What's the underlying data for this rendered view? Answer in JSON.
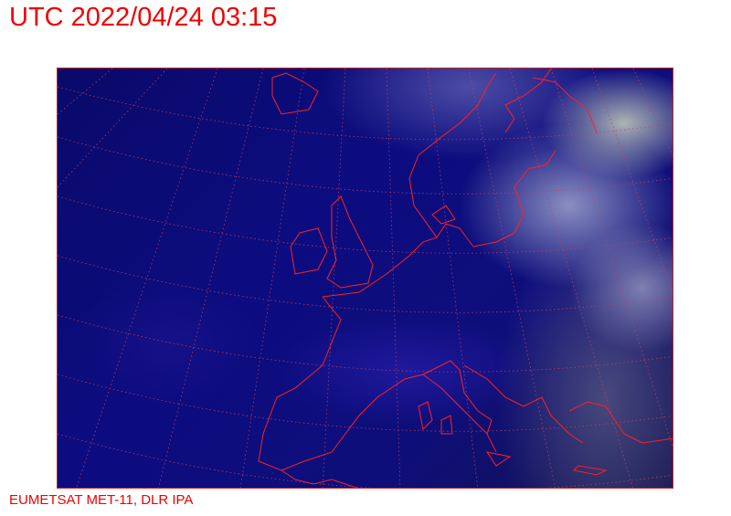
{
  "title": "UTC 2022/04/24 03:15",
  "credit": "EUMETSAT MET-11, DLR IPA",
  "map": {
    "type": "satellite-image",
    "region": "Europe",
    "overlay": [
      "coastlines",
      "lat-lon-grid"
    ],
    "overlay_color": "#ff2020"
  }
}
